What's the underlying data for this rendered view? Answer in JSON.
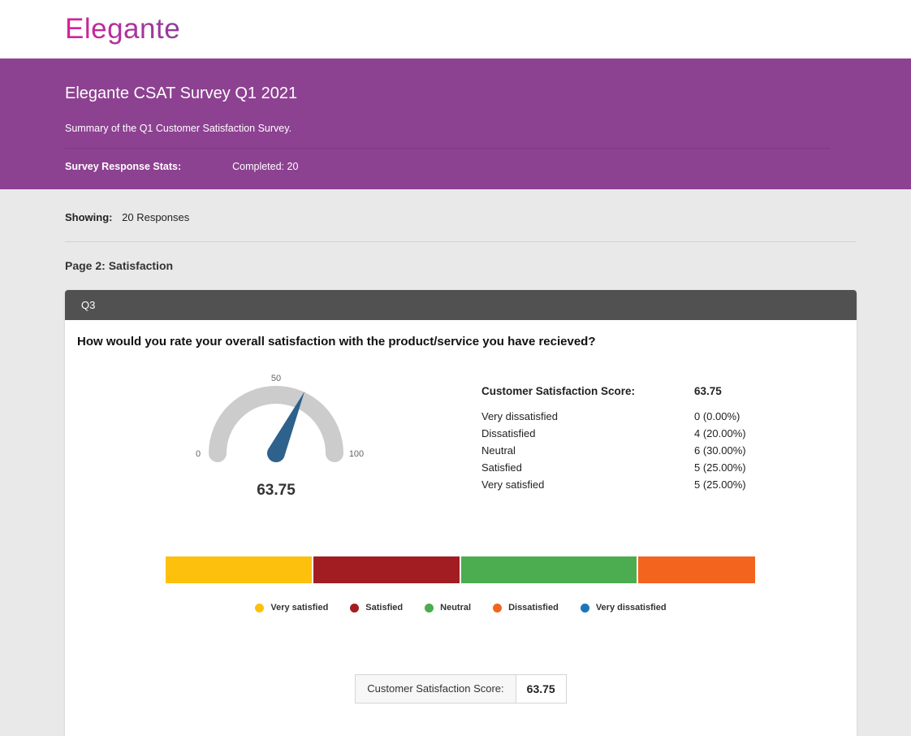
{
  "brand": {
    "logo_text": "Elegante"
  },
  "hero": {
    "title": "Elegante CSAT Survey Q1 2021",
    "subtitle": "Summary of the Q1 Customer Satisfaction Survey.",
    "stats_label": "Survey Response Stats:",
    "stats_value": "Completed: 20"
  },
  "showing": {
    "label": "Showing:",
    "value": "20 Responses"
  },
  "section": {
    "title": "Page 2: Satisfaction"
  },
  "question": {
    "code": "Q3",
    "text": "How would you rate your overall satisfaction with the product/service you have recieved?"
  },
  "stats": {
    "score_label": "Customer Satisfaction Score:",
    "score_value": "63.75",
    "rows": [
      {
        "label": "Very dissatisfied",
        "value": "0 (0.00%)"
      },
      {
        "label": "Dissatisfied",
        "value": "4 (20.00%)"
      },
      {
        "label": "Neutral",
        "value": "6 (30.00%)"
      },
      {
        "label": "Satisfied",
        "value": "5 (25.00%)"
      },
      {
        "label": "Very satisfied",
        "value": "5 (25.00%)"
      }
    ]
  },
  "footer_score": {
    "label": "Customer Satisfaction Score:",
    "value": "63.75"
  },
  "theme": {
    "purple": "#8d4191",
    "card_header_gray": "#515151",
    "page_bg": "#e9e9e9"
  },
  "chart_data": [
    {
      "type": "gauge",
      "title": "Customer Satisfaction Score",
      "value": 63.75,
      "min": 0,
      "max": 100,
      "ticks": [
        "0",
        "50",
        "100"
      ],
      "value_label": "63.75",
      "arc_color": "#cccccc",
      "needle_color": "#2e618c"
    },
    {
      "type": "bar",
      "subtype": "horizontal-stacked",
      "title": "",
      "categories": [
        "Very satisfied",
        "Satisfied",
        "Neutral",
        "Dissatisfied",
        "Very dissatisfied"
      ],
      "counts": [
        5,
        5,
        6,
        4,
        0
      ],
      "percentages": [
        25,
        25,
        30,
        20,
        0
      ],
      "colors": [
        "#fdc00d",
        "#a21d22",
        "#4bad50",
        "#f3641e",
        "#1b75bb"
      ],
      "legend_position": "bottom"
    }
  ]
}
